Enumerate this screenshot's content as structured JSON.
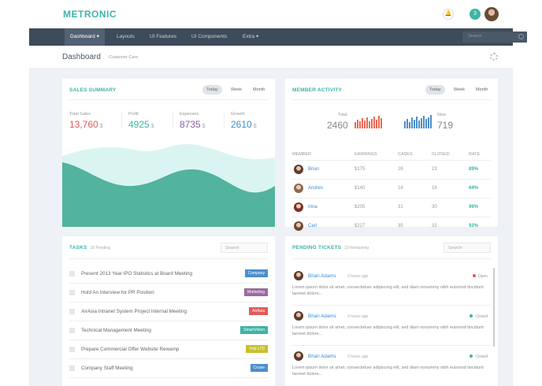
{
  "header": {
    "logo": "METRONIC",
    "notification_count": "3"
  },
  "nav": {
    "items": [
      {
        "label": "Dashboard",
        "caret": true,
        "active": true
      },
      {
        "label": "Layouts"
      },
      {
        "label": "UI Features"
      },
      {
        "label": "UI Components"
      },
      {
        "label": "Extra",
        "caret": true
      }
    ],
    "search_placeholder": "Search"
  },
  "page": {
    "title": "Dashboard",
    "subtitle": "Customer Care"
  },
  "periods": [
    "Today",
    "Week",
    "Month"
  ],
  "sales_summary": {
    "title": "SALES SUMMARY",
    "stats": [
      {
        "label": "Total Sales",
        "value": "13,760",
        "unit": "$",
        "color": "#e35b5a"
      },
      {
        "label": "Profit",
        "value": "4925",
        "unit": "$",
        "color": "#3fb3a6"
      },
      {
        "label": "Expenses",
        "value": "8735",
        "unit": "$",
        "color": "#8e5fa2"
      },
      {
        "label": "Growth",
        "value": "2610",
        "unit": "$",
        "color": "#3a8ed4"
      }
    ]
  },
  "member_activity": {
    "title": "MEMBER ACTIVITY",
    "total_label": "Total",
    "total_value": "2460",
    "new_label": "New",
    "new_value": "719",
    "columns": [
      "MEMBER",
      "EARNINGS",
      "CASES",
      "CLOSED",
      "RATE"
    ],
    "rows": [
      {
        "name": "Brian",
        "earnings": "$175",
        "cases": "26",
        "closed": "23",
        "rate": "89%"
      },
      {
        "name": "Andres",
        "earnings": "$140",
        "cases": "18",
        "closed": "16",
        "rate": "84%"
      },
      {
        "name": "Irina",
        "earnings": "$205",
        "cases": "31",
        "closed": "30",
        "rate": "96%"
      },
      {
        "name": "Carl",
        "earnings": "$227",
        "cases": "35",
        "closed": "32",
        "rate": "92%"
      }
    ]
  },
  "tasks": {
    "title": "TASKS",
    "pending": "16 Pending",
    "search_placeholder": "Search",
    "items": [
      {
        "text": "Present 2013 Year IPO Statistics at Board Meeting",
        "tag": "Company",
        "color": "#4b8fcc"
      },
      {
        "text": "Hold An Interview for PR Position",
        "tag": "Marketing",
        "color": "#9a6b9f"
      },
      {
        "text": "AirAsia Intranet System Project Internal Meeting",
        "tag": "AirAsia",
        "color": "#e35b5a"
      },
      {
        "text": "Technical Management Meeting",
        "tag": "SmartVision",
        "color": "#3fb3a6"
      },
      {
        "text": "Prepare Commercial Offer Website Rewamp",
        "tag": "Yelp LTD",
        "color": "#c7c12c"
      },
      {
        "text": "Company Staff Meeting",
        "tag": "Cruise",
        "color": "#4b8fcc"
      }
    ]
  },
  "tickets": {
    "title": "PENDING TICKETS",
    "remaining": "23 Remaining",
    "search_placeholder": "Search",
    "items": [
      {
        "name": "Brian Adams",
        "time": "3 hours ago",
        "status": "Open",
        "status_color": "#e35b5a",
        "body": "Lorem ipsum dolor sit amet, consectetuer adipiscing elit, sed diam nonummy nibh euismod tincidunt laoreet dolore..."
      },
      {
        "name": "Brian Adams",
        "time": "3 hours ago",
        "status": "Closed",
        "status_color": "#3fb3a6",
        "body": "Lorem ipsum dolor sit amet, consectetuer adipiscing elit, sed diam nonummy nibh euismod tincidunt laoreet dolore..."
      },
      {
        "name": "Brian Adams",
        "time": "3 hours ago",
        "status": "Closed",
        "status_color": "#3fb3a6",
        "body": "Lorem ipsum dolor sit amet, consectetuer adipiscing elit, sed diam nonummy nibh euismod tincidunt laoreet dolore..."
      }
    ]
  },
  "colors": {
    "accent": "#3fb3a6",
    "nav_bg": "#3e4b5b",
    "red": "#e35b5a",
    "blue": "#3a8ed4"
  }
}
